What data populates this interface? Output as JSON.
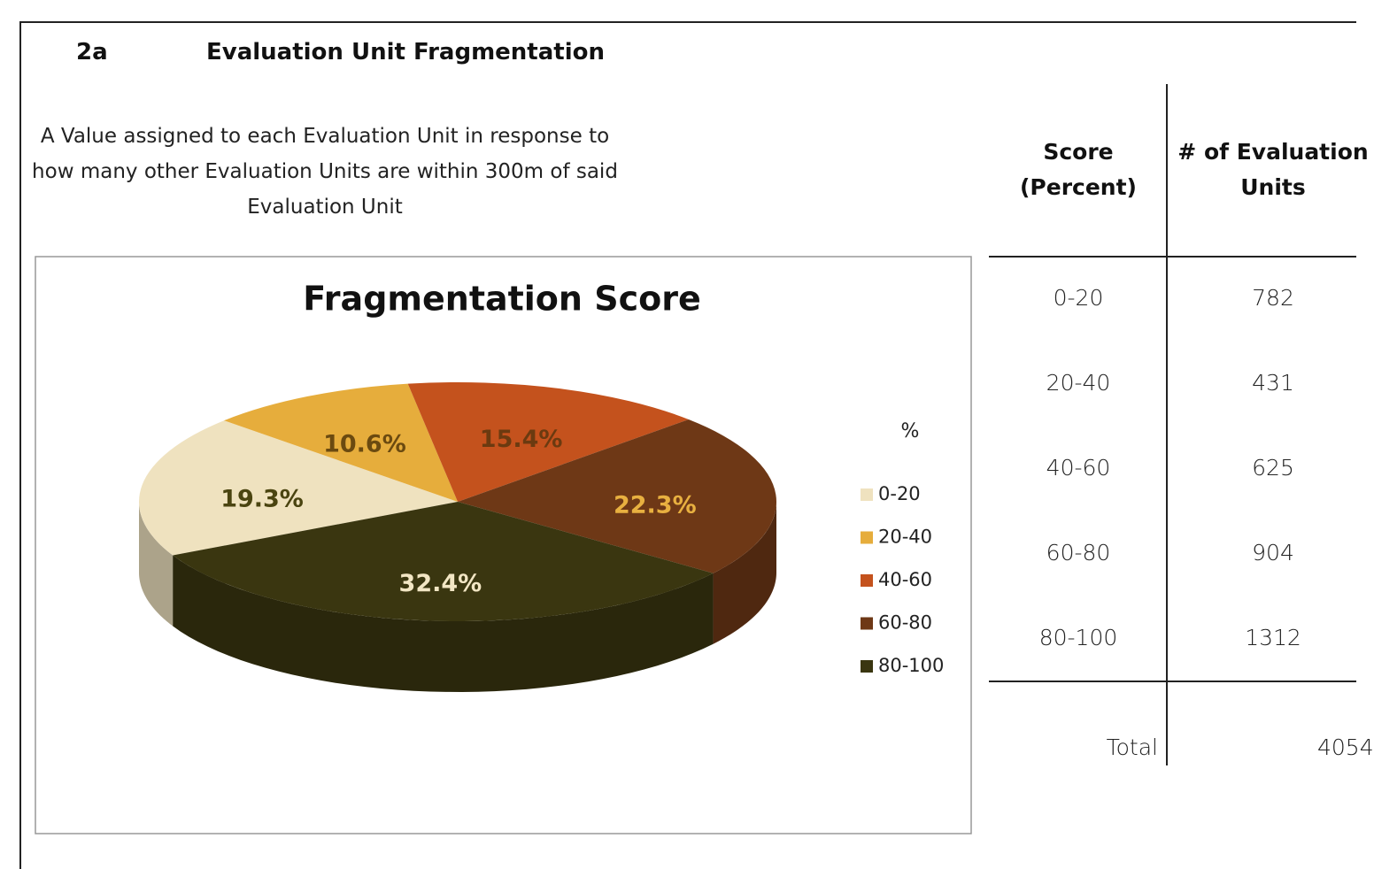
{
  "header": {
    "number": "2a",
    "title": "Evaluation Unit Fragmentation",
    "description": "A Value assigned to each Evaluation Unit in response to how many other Evaluation Units are within 300m of said Evaluation Unit"
  },
  "chart_data": {
    "type": "pie",
    "title": "Fragmentation Score",
    "legend_title": "%",
    "categories": [
      "0-20",
      "20-40",
      "40-60",
      "60-80",
      "80-100"
    ],
    "values": [
      19.3,
      10.6,
      15.4,
      22.3,
      32.4
    ],
    "value_labels": [
      "19.3%",
      "10.6%",
      "15.4%",
      "22.3%",
      "32.4%"
    ],
    "colors": [
      "#efe2bf",
      "#e6ad3c",
      "#c4521d",
      "#6e3816",
      "#3a3610"
    ],
    "label_colors": [
      "#4a4410",
      "#6b4a10",
      "#6b3a10",
      "#e8b040",
      "#f2e6c4"
    ],
    "legend": "right"
  },
  "table": {
    "headers": [
      "Score (Percent)",
      "# of Evaluation Units"
    ],
    "rows": [
      [
        "0-20",
        782
      ],
      [
        "20-40",
        431
      ],
      [
        "40-60",
        625
      ],
      [
        "60-80",
        904
      ],
      [
        "80-100",
        1312
      ]
    ],
    "total": {
      "label": "Total",
      "value": 4054
    }
  }
}
